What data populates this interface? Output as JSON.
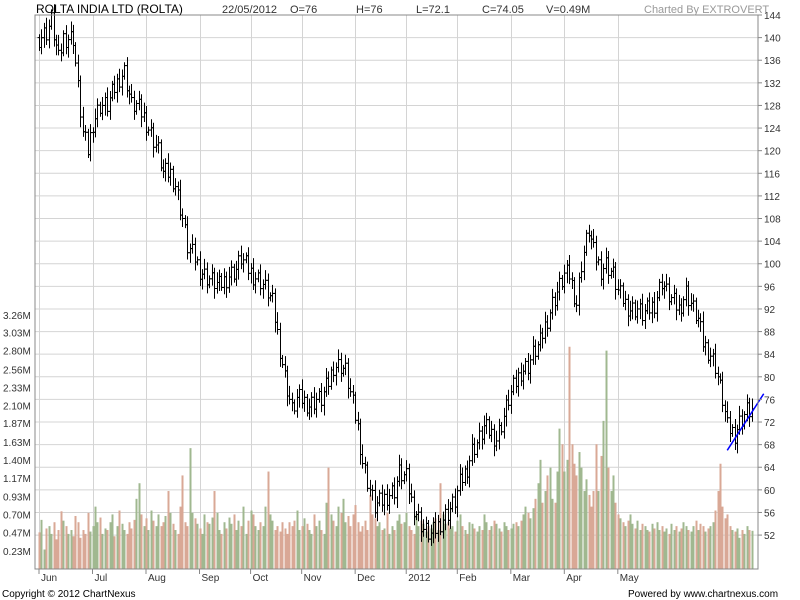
{
  "header": {
    "title": "ROLTA INDIA LTD (ROLTA)",
    "date": "22/05/2012",
    "open": "O=76",
    "high": "H=76",
    "low": "L=72.1",
    "close": "C=74.05",
    "volume": "V=0.49M",
    "credit": "Charted By EXTROVERT"
  },
  "footer": {
    "copyright": "Copyright © 2012 ChartNexus",
    "powered": "Powered by www.chartnexus.com"
  },
  "chart_data": {
    "type": "candlestick-with-volume",
    "months": [
      "Jun",
      "Jul",
      "Aug",
      "Sep",
      "Oct",
      "Nov",
      "Dec",
      "2012",
      "Feb",
      "Mar",
      "Apr",
      "May"
    ],
    "price_axis": {
      "min": 46,
      "max": 144,
      "step": 4,
      "ticks": [
        52,
        56,
        60,
        64,
        68,
        72,
        76,
        80,
        84,
        88,
        92,
        96,
        100,
        104,
        108,
        112,
        116,
        120,
        124,
        128,
        132,
        136,
        140,
        144
      ]
    },
    "volume_axis_labels": [
      "0.23M",
      "0.47M",
      "0.70M",
      "0.93M",
      "1.17M",
      "1.40M",
      "1.63M",
      "1.87M",
      "2.10M",
      "2.33M",
      "2.56M",
      "2.80M",
      "3.03M",
      "3.26M"
    ],
    "volume_axis_values": [
      0.23,
      0.47,
      0.7,
      0.93,
      1.17,
      1.4,
      1.63,
      1.87,
      2.1,
      2.33,
      2.56,
      2.8,
      3.03,
      3.26
    ],
    "close_path": [
      [
        0,
        140
      ],
      [
        3,
        141
      ],
      [
        5,
        143
      ],
      [
        8,
        136
      ],
      [
        10,
        140
      ],
      [
        14,
        140
      ],
      [
        16,
        131
      ],
      [
        18,
        123
      ],
      [
        20,
        120
      ],
      [
        22,
        125
      ],
      [
        25,
        128
      ],
      [
        28,
        128
      ],
      [
        30,
        130
      ],
      [
        33,
        133
      ],
      [
        35,
        134
      ],
      [
        38,
        128
      ],
      [
        40,
        128
      ],
      [
        43,
        126
      ],
      [
        46,
        123
      ],
      [
        49,
        120
      ],
      [
        51,
        116
      ],
      [
        54,
        116
      ],
      [
        56,
        114
      ],
      [
        59,
        108
      ],
      [
        61,
        103
      ],
      [
        64,
        101
      ],
      [
        66,
        99
      ],
      [
        68,
        98
      ],
      [
        71,
        97
      ],
      [
        74,
        96
      ],
      [
        76,
        97
      ],
      [
        78,
        98
      ],
      [
        81,
        99
      ],
      [
        83,
        101
      ],
      [
        86,
        99
      ],
      [
        88,
        98
      ],
      [
        91,
        97
      ],
      [
        94,
        95
      ],
      [
        96,
        93
      ],
      [
        99,
        85
      ],
      [
        101,
        80
      ],
      [
        104,
        74
      ],
      [
        106,
        76
      ],
      [
        108,
        76
      ],
      [
        111,
        75
      ],
      [
        114,
        76
      ],
      [
        116,
        76
      ],
      [
        119,
        79
      ],
      [
        121,
        82
      ],
      [
        124,
        82
      ],
      [
        126,
        81
      ],
      [
        128,
        77
      ],
      [
        131,
        71
      ],
      [
        133,
        65
      ],
      [
        136,
        60
      ],
      [
        138,
        57
      ],
      [
        141,
        58
      ],
      [
        143,
        59
      ],
      [
        146,
        60
      ],
      [
        148,
        63
      ],
      [
        151,
        62
      ],
      [
        153,
        58
      ],
      [
        156,
        55
      ],
      [
        158,
        53
      ],
      [
        161,
        52
      ],
      [
        163,
        53
      ],
      [
        166,
        55
      ],
      [
        168,
        56
      ],
      [
        171,
        58
      ],
      [
        173,
        61
      ],
      [
        176,
        64
      ],
      [
        178,
        67
      ],
      [
        181,
        69
      ],
      [
        183,
        71
      ],
      [
        186,
        70
      ],
      [
        188,
        69
      ],
      [
        191,
        73
      ],
      [
        193,
        76
      ],
      [
        196,
        79
      ],
      [
        198,
        81
      ],
      [
        201,
        82
      ],
      [
        203,
        84
      ],
      [
        206,
        86
      ],
      [
        208,
        89
      ],
      [
        211,
        93
      ],
      [
        213,
        95
      ],
      [
        216,
        98
      ],
      [
        218,
        98
      ],
      [
        221,
        93
      ],
      [
        223,
        100
      ],
      [
        226,
        106
      ],
      [
        228,
        102
      ],
      [
        231,
        99
      ],
      [
        233,
        100
      ],
      [
        236,
        98
      ],
      [
        238,
        95
      ],
      [
        241,
        93
      ],
      [
        243,
        92
      ],
      [
        246,
        92
      ],
      [
        248,
        91
      ],
      [
        251,
        92
      ],
      [
        253,
        93
      ],
      [
        256,
        97
      ],
      [
        258,
        95
      ],
      [
        261,
        93
      ],
      [
        263,
        92
      ],
      [
        266,
        95
      ],
      [
        268,
        93
      ],
      [
        271,
        90
      ],
      [
        273,
        86
      ],
      [
        276,
        84
      ],
      [
        278,
        82
      ],
      [
        281,
        76
      ],
      [
        283,
        71
      ],
      [
        286,
        70
      ],
      [
        288,
        72
      ],
      [
        291,
        74
      ],
      [
        293,
        74
      ],
      [
        296,
        75
      ]
    ],
    "volume_values": [
      0.47,
      0.63,
      0.25,
      0.52,
      0.55,
      0.45,
      0.6,
      0.38,
      0.5,
      0.74,
      0.62,
      0.55,
      0.45,
      0.5,
      0.42,
      0.68,
      0.6,
      0.4,
      0.5,
      0.45,
      0.72,
      0.48,
      0.55,
      0.8,
      0.6,
      0.66,
      0.45,
      0.52,
      0.5,
      0.6,
      0.7,
      0.42,
      0.55,
      0.75,
      0.58,
      0.5,
      0.45,
      0.6,
      0.52,
      0.63,
      0.9,
      1.1,
      0.7,
      0.55,
      0.65,
      0.5,
      0.75,
      0.62,
      0.55,
      0.7,
      0.55,
      0.6,
      0.68,
      1.0,
      0.72,
      0.58,
      0.5,
      0.45,
      0.8,
      1.2,
      0.6,
      0.55,
      1.55,
      0.72,
      0.65,
      0.58,
      0.52,
      0.45,
      0.7,
      0.6,
      0.58,
      0.66,
      1.0,
      0.72,
      0.5,
      0.45,
      0.6,
      0.52,
      0.66,
      0.58,
      0.7,
      0.5,
      0.62,
      0.55,
      0.8,
      0.45,
      0.62,
      0.75,
      0.7,
      0.55,
      0.5,
      0.6,
      0.55,
      0.8,
      1.25,
      0.7,
      0.62,
      0.5,
      0.55,
      0.48,
      0.6,
      0.52,
      0.45,
      0.6,
      0.55,
      0.62,
      0.75,
      0.5,
      0.55,
      0.65,
      0.58,
      0.5,
      0.45,
      0.7,
      0.55,
      0.62,
      0.5,
      0.45,
      0.85,
      1.3,
      0.7,
      0.62,
      0.55,
      0.8,
      0.72,
      0.9,
      0.6,
      0.68,
      0.55,
      0.7,
      0.82,
      0.6,
      0.48,
      0.55,
      0.62,
      0.5,
      0.95,
      0.7,
      0.65,
      0.55,
      0.6,
      0.5,
      0.52,
      0.72,
      0.45,
      0.55,
      0.5,
      0.62,
      0.7,
      0.58,
      0.6,
      0.72,
      0.55,
      0.5,
      0.45,
      0.7,
      0.55,
      0.62,
      0.58,
      0.48,
      0.55,
      0.52,
      0.6,
      0.65,
      0.5,
      1.1,
      0.7,
      0.58,
      0.6,
      0.52,
      0.55,
      0.48,
      0.62,
      0.7,
      0.55,
      0.5,
      0.45,
      0.6,
      0.58,
      0.52,
      0.48,
      0.55,
      0.5,
      0.7,
      0.6,
      0.5,
      0.55,
      0.62,
      0.58,
      0.52,
      0.48,
      0.6,
      0.55,
      0.5,
      0.52,
      0.58,
      0.6,
      0.55,
      0.62,
      0.7,
      0.8,
      0.72,
      0.65,
      0.78,
      0.9,
      1.1,
      1.4,
      0.85,
      1.0,
      1.2,
      1.3,
      0.9,
      0.85,
      1.25,
      1.8,
      1.6,
      1.25,
      1.4,
      2.85,
      1.6,
      1.35,
      1.2,
      1.5,
      1.3,
      1.0,
      1.15,
      0.95,
      0.8,
      1.0,
      1.6,
      1.0,
      1.45,
      1.9,
      2.8,
      1.3,
      1.0,
      1.2,
      0.85,
      0.7,
      0.65,
      0.6,
      0.55,
      0.62,
      0.7,
      0.58,
      0.52,
      0.62,
      0.5,
      0.58,
      0.55,
      0.5,
      0.48,
      0.58,
      0.52,
      0.6,
      0.5,
      0.55,
      0.48,
      0.52,
      0.45,
      0.58,
      0.5,
      0.55,
      0.48,
      0.52,
      0.6,
      0.55,
      0.5,
      0.48,
      0.55,
      0.62,
      0.5,
      0.58,
      0.55,
      0.48,
      0.52,
      0.55,
      0.6,
      0.75,
      1.0,
      1.35,
      0.8,
      0.65,
      0.7,
      0.55,
      0.5,
      0.48,
      0.52,
      0.4,
      0.5,
      0.45,
      0.55,
      0.5,
      0.49
    ],
    "volume_colors": {
      "up": "#a0b890",
      "down": "#d9a896"
    },
    "trendline": {
      "from": [
        283,
        67
      ],
      "to": [
        298,
        77
      ],
      "color": "#0000ff"
    }
  }
}
